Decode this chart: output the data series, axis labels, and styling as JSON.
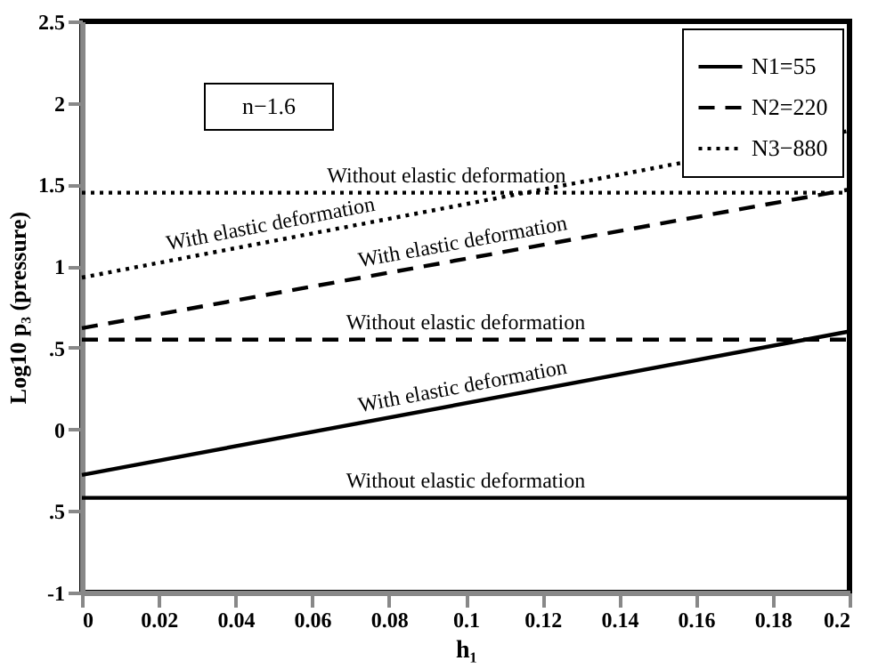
{
  "chart_data": {
    "type": "line",
    "xlabel": "h₁",
    "ylabel": "Log10 p₃ (pressure)",
    "x": [
      0,
      0.2
    ],
    "series": [
      {
        "name": "N1=55",
        "color": "#000000",
        "line_style": "solid",
        "values": [
          -0.28,
          0.6
        ]
      },
      {
        "color": "#000000",
        "line_style": "solid",
        "values": [
          -0.42,
          -0.42
        ]
      },
      {
        "name": "N2=220",
        "color": "#000000",
        "line_style": "dashed",
        "values": [
          0.62,
          1.47
        ]
      },
      {
        "color": "#000000",
        "line_style": "dashed",
        "values": [
          0.55,
          0.55
        ]
      },
      {
        "name": "N3−880",
        "color": "#000000",
        "line_style": "dotted",
        "values": [
          0.93,
          1.83
        ]
      },
      {
        "color": "#000000",
        "line_style": "dotted",
        "values": [
          1.45,
          1.45
        ]
      }
    ],
    "xlim": [
      0,
      0.2
    ],
    "xticks": [
      0,
      0.02,
      0.04,
      0.06,
      0.08,
      0.1,
      0.12,
      0.14,
      0.16,
      0.18,
      0.2
    ],
    "ylim": [
      -1,
      2.5
    ],
    "yticks": [
      -1,
      {
        "value": -0.5,
        "label": ".5"
      },
      0,
      {
        "value": 0.5,
        "label": ".5"
      },
      1,
      1.5,
      2,
      2.5
    ],
    "grid": false,
    "legend": "top right",
    "marker": "none",
    "annotations": [
      {
        "text": "Without elastic deformation",
        "x": 0.095,
        "y": 1.45
      },
      {
        "text": "With elastic deformation",
        "x": 0.05,
        "y": 1.155
      },
      {
        "text": "With elastic deformation",
        "x": 0.1,
        "y": 1.045
      },
      {
        "text": "Without elastic deformation",
        "x": 0.1,
        "y": 0.55
      },
      {
        "text": "With elastic deformation",
        "x": 0.1,
        "y": 0.16
      },
      {
        "text": "Without elastic deformation",
        "x": 0.1,
        "y": -0.42
      },
      "n−1.6"
    ]
  }
}
